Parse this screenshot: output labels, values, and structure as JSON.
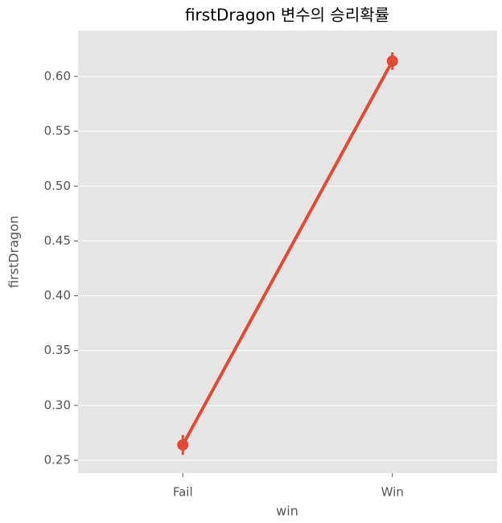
{
  "chart_data": {
    "type": "point",
    "title": "firstDragon 변수의 승리확률",
    "x_label": "win",
    "y_label": "firstDragon",
    "categories": [
      "Fail",
      "Win"
    ],
    "values": [
      0.264,
      0.614
    ],
    "errors": [
      0.009,
      0.008
    ],
    "color": "#E24A33",
    "ylim": [
      0.2383,
      0.6418
    ],
    "yticks": [
      {
        "value": 0.25,
        "label": "0.25"
      },
      {
        "value": 0.3,
        "label": "0.30"
      },
      {
        "value": 0.35,
        "label": "0.35"
      },
      {
        "value": 0.4,
        "label": "0.40"
      },
      {
        "value": 0.45,
        "label": "0.45"
      },
      {
        "value": 0.5,
        "label": "0.50"
      },
      {
        "value": 0.55,
        "label": "0.55"
      },
      {
        "value": 0.6,
        "label": "0.60"
      }
    ],
    "grid": true
  }
}
